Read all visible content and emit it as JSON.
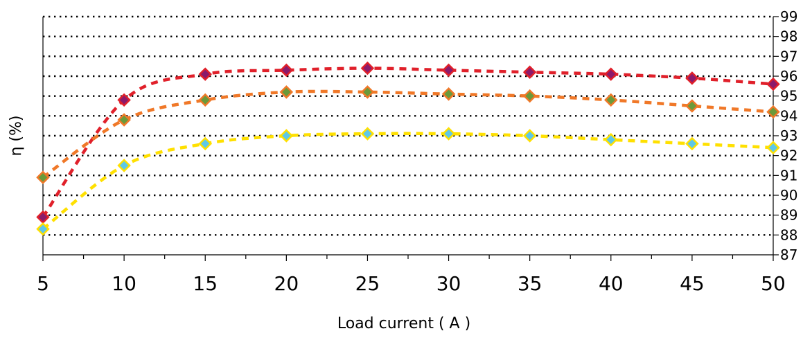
{
  "chart_data": {
    "type": "line",
    "title": "",
    "xlabel": "Load current ( A )",
    "ylabel": "η (%)",
    "x": [
      5,
      10,
      15,
      20,
      25,
      30,
      35,
      40,
      45,
      50
    ],
    "xlim": [
      5,
      50
    ],
    "ylim": [
      87,
      99
    ],
    "y_ticks": [
      87,
      88,
      89,
      90,
      91,
      92,
      93,
      94,
      95,
      96,
      97,
      98,
      99
    ],
    "y_axis_side": "right",
    "grid": "horizontal dotted",
    "legend": "none",
    "series": [
      {
        "values": [
          88.9,
          94.8,
          96.1,
          96.3,
          96.4,
          96.3,
          96.2,
          96.1,
          95.9,
          95.6
        ],
        "line_color": "#e0202a",
        "marker_fill": "#8b1a6b",
        "marker_edge": "#e0202a"
      },
      {
        "values": [
          90.9,
          93.8,
          94.8,
          95.2,
          95.2,
          95.1,
          95.0,
          94.8,
          94.5,
          94.2
        ],
        "line_color": "#f07828",
        "marker_fill": "#6a9a3a",
        "marker_edge": "#f07828"
      },
      {
        "values": [
          88.3,
          91.5,
          92.6,
          93.0,
          93.1,
          93.1,
          93.0,
          92.8,
          92.6,
          92.4
        ],
        "line_color": "#ffe000",
        "marker_fill": "#5ec8e8",
        "marker_edge": "#ffe000"
      }
    ]
  }
}
